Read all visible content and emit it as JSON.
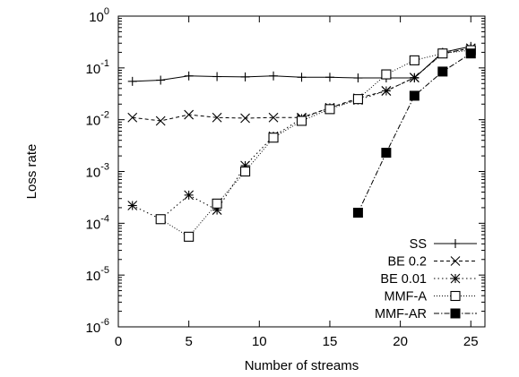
{
  "chart_data": {
    "type": "line",
    "title": "",
    "xlabel": "Number of streams",
    "ylabel": "Loss rate",
    "xlim": [
      0,
      26
    ],
    "ylim": [
      1e-06,
      1
    ],
    "yscale": "log",
    "grid": false,
    "legend_position": "bottom-right",
    "x_ticks": [
      {
        "value": 0,
        "label": "0"
      },
      {
        "value": 5,
        "label": "5"
      },
      {
        "value": 10,
        "label": "10"
      },
      {
        "value": 15,
        "label": "15"
      },
      {
        "value": 20,
        "label": "20"
      },
      {
        "value": 25,
        "label": "25"
      }
    ],
    "y_ticks": [
      {
        "value": 1e-06,
        "base": "10",
        "exp": "-6"
      },
      {
        "value": 1e-05,
        "base": "10",
        "exp": "-5"
      },
      {
        "value": 0.0001,
        "base": "10",
        "exp": "-4"
      },
      {
        "value": 0.001,
        "base": "10",
        "exp": "-3"
      },
      {
        "value": 0.01,
        "base": "10",
        "exp": "-2"
      },
      {
        "value": 0.1,
        "base": "10",
        "exp": "-1"
      },
      {
        "value": 1,
        "base": "10",
        "exp": "0"
      }
    ],
    "series": [
      {
        "name": "SS",
        "marker": "plus",
        "dash": "none",
        "x": [
          1,
          3,
          5,
          7,
          9,
          11,
          13,
          15,
          17,
          19,
          21,
          23,
          25
        ],
        "y": [
          0.055,
          0.058,
          0.07,
          0.068,
          0.067,
          0.07,
          0.066,
          0.066,
          0.064,
          0.064,
          0.064,
          0.2,
          0.26
        ]
      },
      {
        "name": "BE 0.2",
        "marker": "cross",
        "dash": "4,3",
        "x": [
          1,
          3,
          5,
          7,
          9,
          11,
          13,
          15,
          17,
          19,
          21,
          23,
          25
        ],
        "y": [
          0.011,
          0.0095,
          0.0125,
          0.011,
          0.0107,
          0.011,
          0.011,
          0.017,
          0.026,
          0.036,
          0.065,
          0.19,
          0.24
        ]
      },
      {
        "name": "BE 0.01",
        "marker": "star",
        "dash": "1.5,3",
        "x": [
          1,
          3,
          5,
          7,
          9,
          11,
          13,
          15,
          17,
          19,
          21,
          23,
          25
        ],
        "y": [
          0.00022,
          0.00012,
          0.00035,
          0.00018,
          0.0013,
          0.0048,
          0.0105,
          0.017,
          0.024,
          0.036,
          0.065,
          0.19,
          0.24
        ]
      },
      {
        "name": "MMF-A",
        "marker": "square-open",
        "dash": "1,2",
        "x": [
          3,
          5,
          7,
          9,
          11,
          13,
          15,
          17,
          19,
          21,
          23,
          25
        ],
        "y": [
          0.00012,
          5.5e-05,
          0.00024,
          0.001,
          0.0045,
          0.0095,
          0.016,
          0.025,
          0.075,
          0.14,
          0.19,
          0.22
        ]
      },
      {
        "name": "MMF-AR",
        "marker": "square-filled",
        "dash": "6,2,1.5,2",
        "x": [
          17,
          19,
          21,
          23,
          25
        ],
        "y": [
          0.00016,
          0.0023,
          0.029,
          0.085,
          0.19
        ]
      }
    ]
  }
}
